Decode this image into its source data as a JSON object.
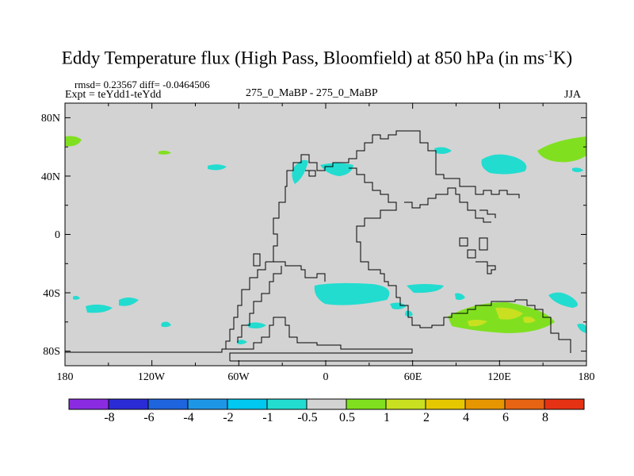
{
  "title": {
    "main": "Eddy Temperature flux (High Pass, Bloomfield) at 850 hPa (in ms",
    "sup": "-1",
    "end": "K)"
  },
  "stats": "rmsd= 0.23567 diff= -0.0464506",
  "expt": "Expt = teYdd1-teYdd",
  "center_label": "275_0_MaBP - 275_0_MaBP",
  "season": "JJA",
  "y_ticks": [
    "80N",
    "40N",
    "0",
    "40S",
    "80S"
  ],
  "x_ticks": [
    "180",
    "120W",
    "60W",
    "0",
    "60E",
    "120E",
    "180"
  ],
  "colorbar": {
    "labels": [
      "-8",
      "-6",
      "-4",
      "-2",
      "-1",
      "-0.5",
      "0.5",
      "1",
      "2",
      "4",
      "6",
      "8"
    ],
    "colors": [
      "#8a2be2",
      "#2b2bd6",
      "#1e64dc",
      "#1e96e6",
      "#00c8f0",
      "#22dcd0",
      "#d3d3d3",
      "#80e020",
      "#c8e020",
      "#e6c800",
      "#e69600",
      "#e66414",
      "#e63214"
    ]
  },
  "map_colors": {
    "background": "#d3d3d3",
    "negative_weak": "#22dcd0",
    "negative": "#00c8f0",
    "positive_weak": "#80e020",
    "positive": "#c8e020"
  }
}
